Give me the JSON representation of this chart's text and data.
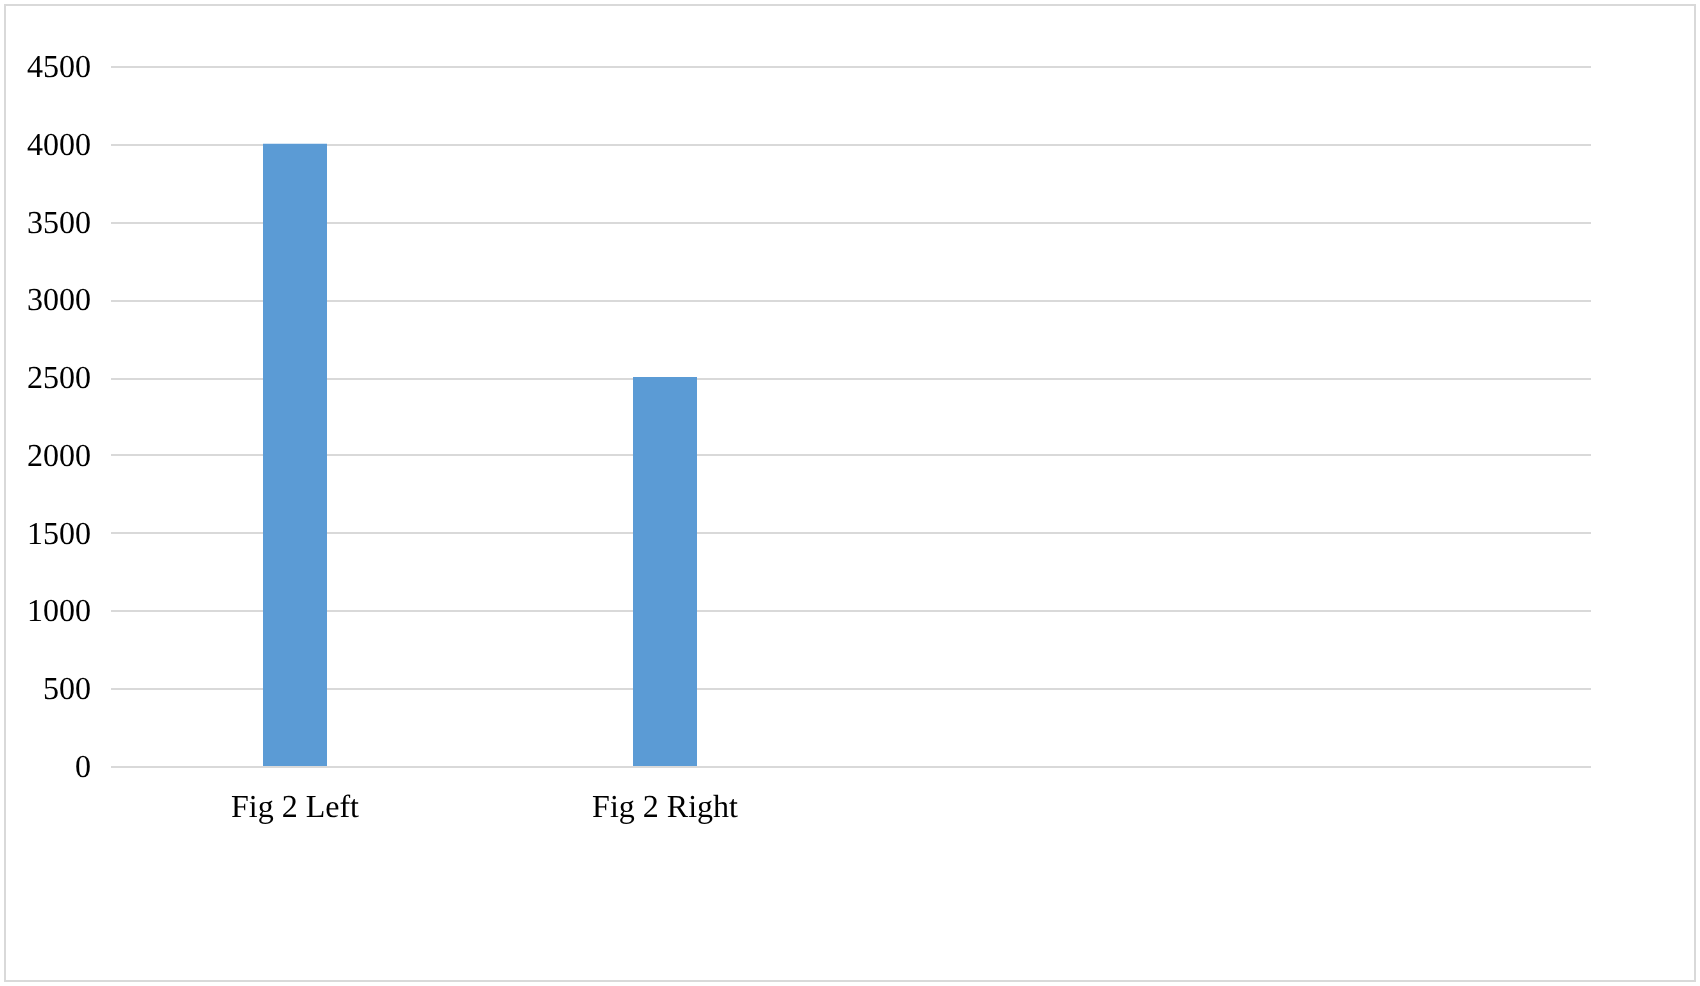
{
  "chart_data": {
    "type": "bar",
    "categories": [
      "Fig 2 Left",
      "Fig 2 Right",
      null,
      null
    ],
    "series": [
      {
        "color": "#5b9bd5",
        "values": [
          4000,
          2500,
          null,
          null
        ]
      }
    ],
    "ylim": [
      0,
      4500
    ],
    "yticks": [
      0,
      500,
      1000,
      1500,
      2000,
      2500,
      3000,
      3500,
      4000,
      4500
    ],
    "grid": "y"
  }
}
